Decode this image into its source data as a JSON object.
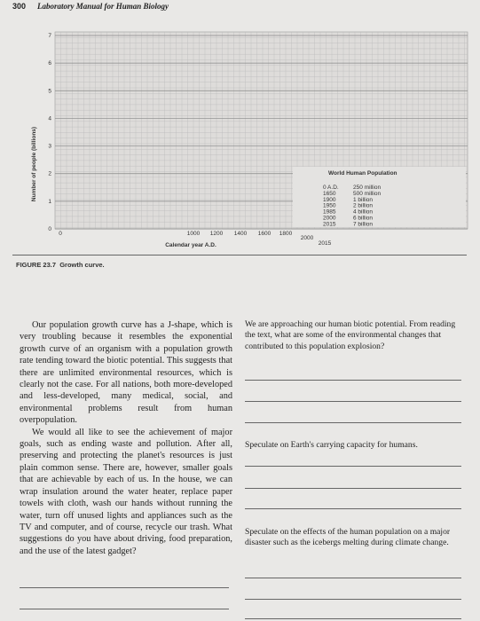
{
  "header": {
    "page_number": "300",
    "title": "Laboratory Manual for Human Biology"
  },
  "figure": {
    "y_axis_label": "Number of people (billions)",
    "y_ticks": [
      "0",
      "1",
      "2",
      "3",
      "4",
      "5",
      "6",
      "7"
    ],
    "x_ticks": [
      "0",
      "1000",
      "1200",
      "1400",
      "1600",
      "1800",
      "2000",
      "2015"
    ],
    "x_axis_label": "Calendar year A.D.",
    "table": {
      "title": "World Human Population",
      "rows": [
        [
          "0 A.D.",
          "250 million"
        ],
        [
          "1650",
          "500 million"
        ],
        [
          "1900",
          "1 billion"
        ],
        [
          "1950",
          "2 billion"
        ],
        [
          "1985",
          "4 billion"
        ],
        [
          "2000",
          "6 billion"
        ],
        [
          "2015",
          "7 billion"
        ]
      ]
    },
    "caption_label": "FIGURE 23.7",
    "caption": "Growth curve."
  },
  "left_column": {
    "paragraphs": [
      "Our population growth curve has a J-shape, which is very troubling because it resembles the exponential growth curve of an organism with a population growth rate tending toward the biotic potential. This suggests that there are unlimited environmental resources, which is clearly not the case. For all nations, both more-developed and less-developed, many medical, social, and environmental problems result from human overpopulation.",
      "We would all like to see the achievement of major goals, such as ending waste and pollution. After all, preserving and protecting the planet's resources is just plain common sense. There are, however, smaller goals that are achievable by each of us. In the house, we can wrap insulation around the water heater, replace paper towels with cloth, wash our hands without running the water, turn off unused lights and appliances such as the TV and computer, and of course, recycle our trash. What suggestions do you have about driving, food preparation, and the use of the latest gadget?"
    ]
  },
  "right_column": {
    "questions": [
      "We are approaching our human biotic potential. From reading the text, what are some of the environmental changes that contributed to this population explosion?",
      "Speculate on Earth's carrying capacity for humans.",
      "Speculate on the effects of the human population on a major disaster such as the icebergs melting during climate change."
    ]
  }
}
